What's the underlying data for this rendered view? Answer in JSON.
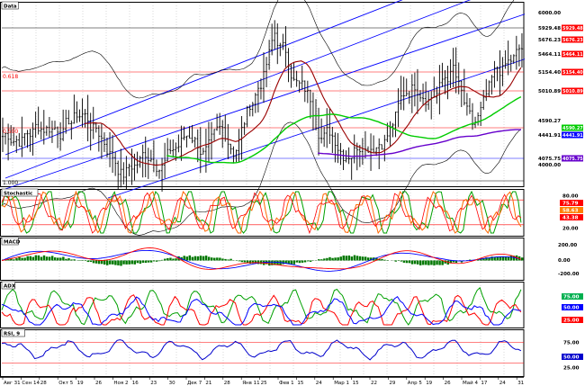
{
  "window": {
    "title": "Data"
  },
  "panes": {
    "price": {
      "label": "Data",
      "fib_labels": {
        "top": "0.618",
        "mid": "0.500",
        "bottom": "1.000"
      },
      "axis_labels": [
        "6000.00",
        "5929.48",
        "5676.23",
        "5464.11",
        "5154.40",
        "5010.89",
        "4590.27",
        "4441.91",
        "4075.75",
        "4000.00"
      ],
      "axis_tags": [
        {
          "text": "5929.48",
          "bg": "#ffffff"
        },
        {
          "text": "5676.23",
          "bg": "#ffffff"
        },
        {
          "text": "5464.11",
          "bg": "#ffffff"
        },
        {
          "text": "5154.40",
          "bg": "#ffffff"
        },
        {
          "text": "5010.89",
          "bg": "#ffffff"
        },
        {
          "text": "4590.27",
          "bg": "#ffffff"
        },
        {
          "text": "4441.91",
          "bg": "#ffffff"
        },
        {
          "text": "4075.75",
          "bg": "#ffffff"
        }
      ]
    },
    "stochastic": {
      "label": "Stochastic",
      "axis_labels": [
        "80.00",
        "75.79",
        "58.63",
        "43.38",
        "20.00"
      ],
      "tag_colors": [
        "#00b050",
        "#ff0000",
        "#ff8000",
        "#ff0000",
        "#ff8000"
      ]
    },
    "macd": {
      "label": "MACD",
      "axis_labels": [
        "200.00",
        "0.00",
        "-200.00"
      ]
    },
    "adx": {
      "label": "ADX",
      "axis_labels": [
        "75.00",
        "50.00",
        "25.00"
      ],
      "tag_colors": [
        "#00b050",
        "#0000ff",
        "#ff0000"
      ]
    },
    "rsi": {
      "label": "RSI, 9",
      "axis_labels": [
        "75.00",
        "50.00",
        "25.00"
      ]
    }
  },
  "x_axis": {
    "labels": [
      "Авг 31",
      "Сен 14",
      "28",
      "Окт 5",
      "19",
      "26",
      "Ноя 2",
      "16",
      "23",
      "30",
      "Дек 7",
      "21",
      "28",
      "Янв 11",
      "25",
      "Фев 1",
      "15",
      "24",
      "Мар 1",
      "15",
      "22",
      "29",
      "Апр 5",
      "19",
      "26",
      "Май 4",
      "17",
      "24",
      "31"
    ]
  },
  "colors": {
    "price_bars": "#000000",
    "channel": "#0000ff",
    "ma_red": "#990000",
    "ma_green": "#00cc00",
    "ma_purple": "#6600cc",
    "grid": "#c0c0c0",
    "macd_hist": "#007700",
    "stoch_k": "#00a000",
    "stoch_d": "#ff6600",
    "stoch_slow": "#ff0000",
    "adx_plus": "#00a000",
    "adx_minus": "#ff0000",
    "adx_line": "#0000ff",
    "rsi": "#0000cc"
  }
}
